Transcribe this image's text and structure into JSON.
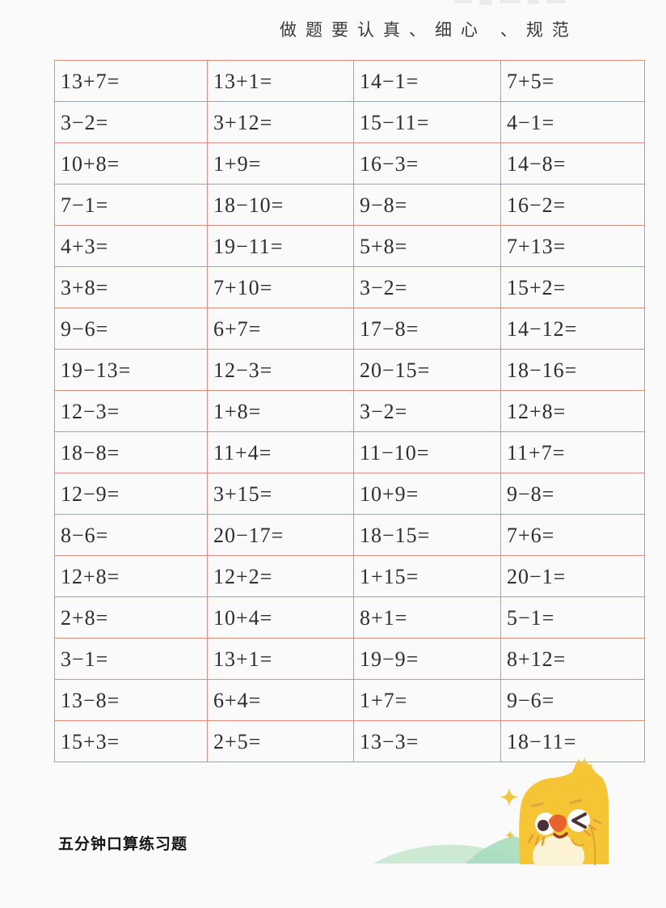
{
  "page": {
    "background": "#fbfafa",
    "border_color": "#df8d82",
    "text_color": "#2e2e2e"
  },
  "header": {
    "motto": "做题要认真、细心 、规范"
  },
  "table": {
    "columns": 4,
    "rows": [
      [
        "13+7=",
        "13+1=",
        "14−1=",
        "7+5="
      ],
      [
        "3−2=",
        "3+12=",
        "15−11=",
        "4−1="
      ],
      [
        "10+8=",
        "1+9=",
        "16−3=",
        "14−8="
      ],
      [
        "7−1=",
        "18−10=",
        "9−8=",
        "16−2="
      ],
      [
        "4+3=",
        "19−11=",
        "5+8=",
        "7+13="
      ],
      [
        "3+8=",
        "7+10=",
        "3−2=",
        "15+2="
      ],
      [
        "9−6=",
        "6+7=",
        "17−8=",
        "14−12="
      ],
      [
        "19−13=",
        "12−3=",
        "20−15=",
        "18−16="
      ],
      [
        "12−3=",
        "1+8=",
        "3−2=",
        "12+8="
      ],
      [
        "18−8=",
        "11+4=",
        "11−10=",
        "11+7="
      ],
      [
        "12−9=",
        "3+15=",
        "10+9=",
        "9−8="
      ],
      [
        "8−6=",
        "20−17=",
        "18−15=",
        "7+6="
      ],
      [
        "12+8=",
        "12+2=",
        "1+15=",
        "20−1="
      ],
      [
        "2+8=",
        "10+4=",
        "8+1=",
        "5−1="
      ],
      [
        "3−1=",
        "13+1=",
        "19−9=",
        "8+12="
      ],
      [
        "13−8=",
        "6+4=",
        "1+7=",
        "9−6="
      ],
      [
        "15+3=",
        "2+5=",
        "13−3=",
        "18−11="
      ]
    ]
  },
  "footer": {
    "title": "五分钟口算练习题"
  },
  "illustration": {
    "description": "winking-chick-mascot-on-green-hill-with-sparkles",
    "sparkle_count": 3,
    "colors": {
      "body": "#F6C536",
      "beak": "#E8632C",
      "belly": "#FBF3D4",
      "hill_light": "#CDE9D4",
      "hill_dark": "#A9DCBE",
      "sparkle": "#F2C644",
      "eye": "#4B3134"
    }
  }
}
